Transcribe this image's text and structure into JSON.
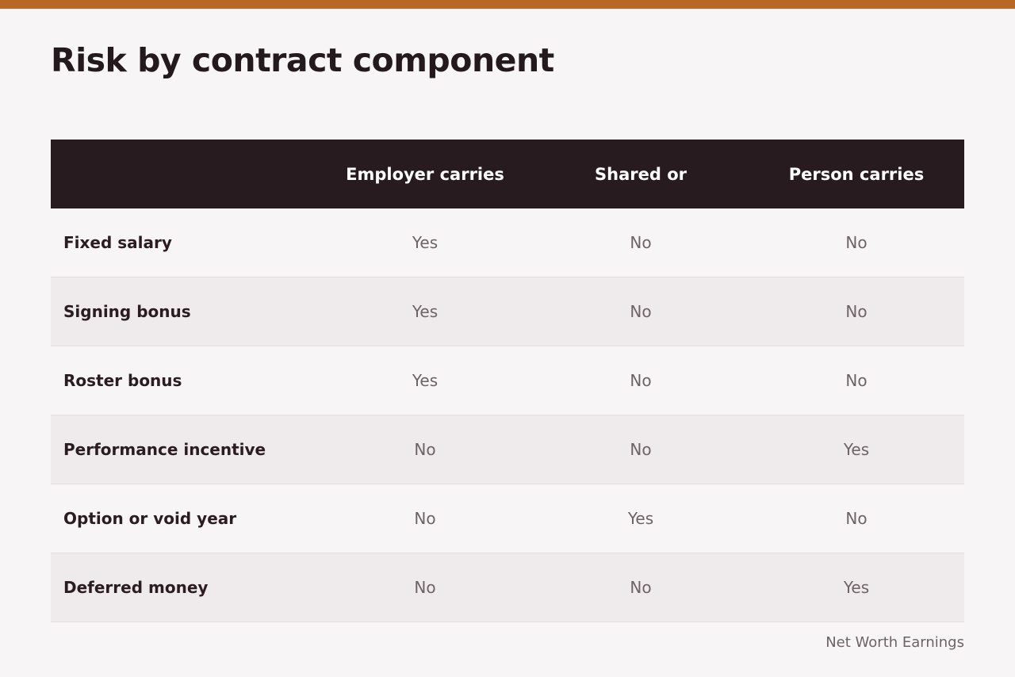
{
  "title": "Risk by contract component",
  "accent_color": "#b96724",
  "header_bg_color": "#271b1f",
  "columns": [
    "",
    "Employer carries",
    "Shared or",
    "Person carries"
  ],
  "rows": [
    {
      "label": "Fixed salary",
      "values": [
        "Yes",
        "No",
        "No"
      ]
    },
    {
      "label": "Signing bonus",
      "values": [
        "Yes",
        "No",
        "No"
      ]
    },
    {
      "label": "Roster bonus",
      "values": [
        "Yes",
        "No",
        "No"
      ]
    },
    {
      "label": "Performance incentive",
      "values": [
        "No",
        "No",
        "Yes"
      ]
    },
    {
      "label": "Option or void year",
      "values": [
        "No",
        "Yes",
        "No"
      ]
    },
    {
      "label": "Deferred money",
      "values": [
        "No",
        "No",
        "Yes"
      ]
    }
  ],
  "source": "Net Worth Earnings"
}
